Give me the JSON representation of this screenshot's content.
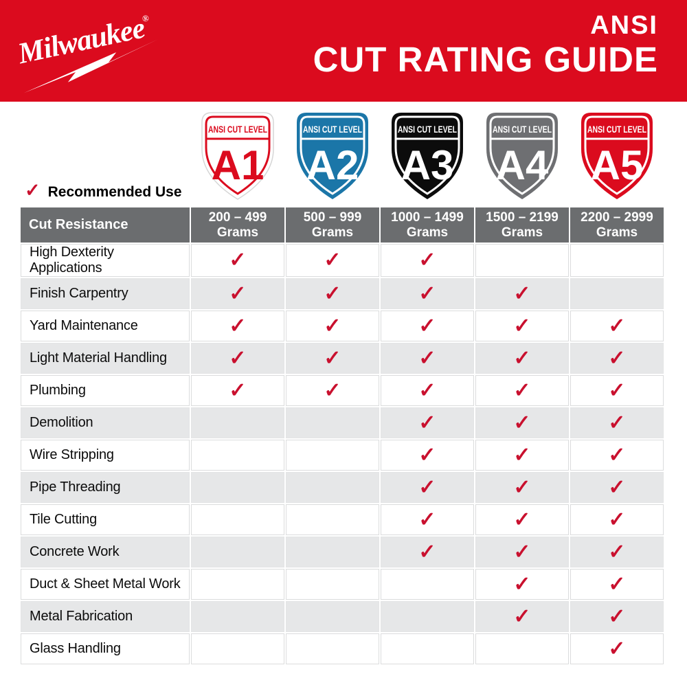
{
  "brand": {
    "name": "Milwaukee",
    "registered": "®"
  },
  "header": {
    "title_line1": "ANSI",
    "title_line2": "CUT RATING GUIDE",
    "bg_color": "#DB0B1E",
    "text_color": "#FFFFFF"
  },
  "legend": {
    "check_glyph": "✓",
    "label": "Recommended Use"
  },
  "shields": [
    {
      "banner": "ANSI CUT LEVEL",
      "level": "A1",
      "bg": "#FFFFFF",
      "accent": "#DB0B1E"
    },
    {
      "banner": "ANSI CUT LEVEL",
      "level": "A2",
      "bg": "#1B76A8",
      "accent": "#FFFFFF"
    },
    {
      "banner": "ANSI CUT LEVEL",
      "level": "A3",
      "bg": "#0C0C0C",
      "accent": "#FFFFFF"
    },
    {
      "banner": "ANSI CUT LEVEL",
      "level": "A4",
      "bg": "#6E6F72",
      "accent": "#FFFFFF"
    },
    {
      "banner": "ANSI CUT LEVEL",
      "level": "A5",
      "bg": "#DB0B1E",
      "accent": "#FFFFFF"
    }
  ],
  "table": {
    "corner_header": "Cut Resistance",
    "check_glyph": "✓",
    "check_color": "#C9102E",
    "columns": [
      {
        "range": "200 – 499",
        "unit": "Grams"
      },
      {
        "range": "500 – 999",
        "unit": "Grams"
      },
      {
        "range": "1000 – 1499",
        "unit": "Grams"
      },
      {
        "range": "1500 – 2199",
        "unit": "Grams"
      },
      {
        "range": "2200 – 2999",
        "unit": "Grams"
      }
    ],
    "rows": [
      {
        "label": "High Dexterity Applications",
        "checks": [
          true,
          true,
          true,
          false,
          false
        ]
      },
      {
        "label": "Finish Carpentry",
        "checks": [
          true,
          true,
          true,
          true,
          false
        ]
      },
      {
        "label": "Yard Maintenance",
        "checks": [
          true,
          true,
          true,
          true,
          true
        ]
      },
      {
        "label": "Light Material Handling",
        "checks": [
          true,
          true,
          true,
          true,
          true
        ]
      },
      {
        "label": "Plumbing",
        "checks": [
          true,
          true,
          true,
          true,
          true
        ]
      },
      {
        "label": "Demolition",
        "checks": [
          false,
          false,
          true,
          true,
          true
        ]
      },
      {
        "label": "Wire Stripping",
        "checks": [
          false,
          false,
          true,
          true,
          true
        ]
      },
      {
        "label": "Pipe Threading",
        "checks": [
          false,
          false,
          true,
          true,
          true
        ]
      },
      {
        "label": "Tile Cutting",
        "checks": [
          false,
          false,
          true,
          true,
          true
        ]
      },
      {
        "label": "Concrete Work",
        "checks": [
          false,
          false,
          true,
          true,
          true
        ]
      },
      {
        "label": "Duct & Sheet Metal Work",
        "checks": [
          false,
          false,
          false,
          true,
          true
        ]
      },
      {
        "label": "Metal Fabrication",
        "checks": [
          false,
          false,
          false,
          true,
          true
        ]
      },
      {
        "label": "Glass Handling",
        "checks": [
          false,
          false,
          false,
          false,
          true
        ]
      }
    ]
  },
  "chart_data": {
    "type": "table",
    "title": "ANSI CUT RATING GUIDE",
    "row_header": "Cut Resistance",
    "legend": "✓ = Recommended Use",
    "columns": [
      "A1: 200 – 499 Grams",
      "A2: 500 – 999 Grams",
      "A3: 1000 – 1499 Grams",
      "A4: 1500 – 2199 Grams",
      "A5: 2200 – 2999 Grams"
    ],
    "rows": [
      {
        "label": "High Dexterity Applications",
        "recommended": [
          "A1",
          "A2",
          "A3"
        ]
      },
      {
        "label": "Finish Carpentry",
        "recommended": [
          "A1",
          "A2",
          "A3",
          "A4"
        ]
      },
      {
        "label": "Yard Maintenance",
        "recommended": [
          "A1",
          "A2",
          "A3",
          "A4",
          "A5"
        ]
      },
      {
        "label": "Light Material Handling",
        "recommended": [
          "A1",
          "A2",
          "A3",
          "A4",
          "A5"
        ]
      },
      {
        "label": "Plumbing",
        "recommended": [
          "A1",
          "A2",
          "A3",
          "A4",
          "A5"
        ]
      },
      {
        "label": "Demolition",
        "recommended": [
          "A3",
          "A4",
          "A5"
        ]
      },
      {
        "label": "Wire Stripping",
        "recommended": [
          "A3",
          "A4",
          "A5"
        ]
      },
      {
        "label": "Pipe Threading",
        "recommended": [
          "A3",
          "A4",
          "A5"
        ]
      },
      {
        "label": "Tile Cutting",
        "recommended": [
          "A3",
          "A4",
          "A5"
        ]
      },
      {
        "label": "Concrete Work",
        "recommended": [
          "A3",
          "A4",
          "A5"
        ]
      },
      {
        "label": "Duct & Sheet Metal Work",
        "recommended": [
          "A4",
          "A5"
        ]
      },
      {
        "label": "Metal Fabrication",
        "recommended": [
          "A4",
          "A5"
        ]
      },
      {
        "label": "Glass Handling",
        "recommended": [
          "A5"
        ]
      }
    ]
  }
}
